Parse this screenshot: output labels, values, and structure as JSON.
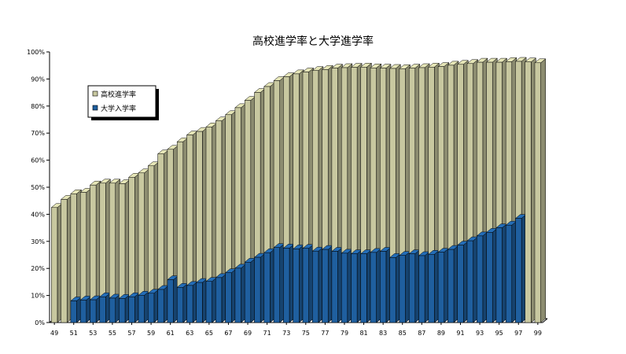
{
  "chart_data": {
    "type": "bar",
    "title": "高校進学率と大学進学率",
    "xlabel": "",
    "ylabel": "",
    "ylim": [
      0,
      100
    ],
    "grid": false,
    "legend_position": "upper-left",
    "y_ticks": [
      "0%",
      "10%",
      "20%",
      "30%",
      "40%",
      "50%",
      "60%",
      "70%",
      "80%",
      "90%",
      "100%"
    ],
    "x_tick_labels": [
      "49",
      "51",
      "53",
      "55",
      "57",
      "59",
      "61",
      "63",
      "65",
      "67",
      "69",
      "71",
      "73",
      "75",
      "77",
      "79",
      "81",
      "83",
      "85",
      "87",
      "89",
      "91",
      "93",
      "95",
      "97",
      "99"
    ],
    "categories": [
      "49",
      "50",
      "51",
      "52",
      "53",
      "54",
      "55",
      "56",
      "57",
      "58",
      "59",
      "60",
      "61",
      "62",
      "63",
      "64",
      "65",
      "66",
      "67",
      "68",
      "69",
      "70",
      "71",
      "72",
      "73",
      "74",
      "75",
      "76",
      "77",
      "78",
      "79",
      "80",
      "81",
      "82",
      "83",
      "84",
      "85",
      "86",
      "87",
      "88",
      "89",
      "90",
      "91",
      "92",
      "93",
      "94",
      "95",
      "96",
      "97",
      "98",
      "99"
    ],
    "series": [
      {
        "name": "高校進学率",
        "color": "#c8c8a0",
        "values": [
          42.5,
          45.5,
          47.6,
          48.1,
          50.8,
          51.5,
          51.5,
          51.3,
          53.7,
          55.3,
          57.9,
          62.3,
          64.0,
          66.8,
          69.3,
          70.6,
          72.3,
          74.5,
          76.8,
          79.4,
          82.1,
          85.0,
          87.2,
          89.4,
          90.8,
          91.9,
          92.6,
          93.1,
          93.5,
          94.0,
          94.2,
          94.3,
          94.4,
          94.1,
          94.0,
          93.9,
          93.8,
          94.0,
          94.2,
          94.4,
          94.6,
          95.1,
          95.4,
          95.7,
          96.2,
          96.2,
          96.2,
          96.4,
          96.5,
          96.3,
          96.0
        ]
      },
      {
        "name": "大学入学率",
        "color": "#1f5f9f",
        "values": [
          null,
          null,
          8.0,
          8.3,
          8.4,
          9.5,
          9.0,
          8.9,
          9.5,
          10.1,
          10.8,
          12.2,
          15.8,
          13.0,
          13.7,
          14.8,
          15.2,
          16.6,
          18.4,
          20.1,
          22.3,
          24.1,
          25.8,
          27.7,
          27.5,
          27.2,
          27.4,
          26.4,
          27.0,
          26.3,
          25.6,
          25.4,
          25.4,
          25.9,
          26.3,
          24.0,
          24.8,
          25.4,
          24.7,
          25.2,
          26.0,
          27.0,
          28.6,
          30.2,
          32.0,
          33.3,
          35.0,
          36.0,
          38.5,
          null,
          null
        ]
      }
    ]
  }
}
